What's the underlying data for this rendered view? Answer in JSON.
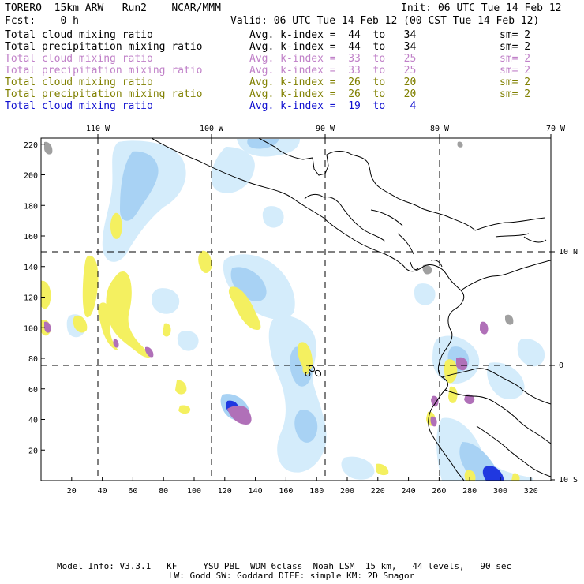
{
  "header": {
    "model": "TORERO  15km ARW   Run2    NCAR/MMM",
    "init": "Init: 06 UTC Tue 14 Feb 12",
    "fcst": "Fcst:    0 h",
    "valid": "Valid: 06 UTC Tue 14 Feb 12 (00 CST Tue 14 Feb 12)"
  },
  "legend": [
    {
      "field": "Total cloud mixing ratio",
      "kindex": "Avg. k-index =  44  to   34",
      "sm": "sm= 2",
      "color": "#000000"
    },
    {
      "field": "Total precipitation mixing ratio",
      "kindex": "Avg. k-index =  44  to   34",
      "sm": "sm= 2",
      "color": "#000000"
    },
    {
      "field": "Total cloud mixing ratio",
      "kindex": "Avg. k-index =  33  to   25",
      "sm": "sm= 2",
      "color": "#c080c8"
    },
    {
      "field": "Total precipitation mixing ratio",
      "kindex": "Avg. k-index =  33  to   25",
      "sm": "sm= 2",
      "color": "#c080c8"
    },
    {
      "field": "Total cloud mixing ratio",
      "kindex": "Avg. k-index =  26  to   20",
      "sm": "sm= 2",
      "color": "#808000"
    },
    {
      "field": "Total precipitation mixing ratio",
      "kindex": "Avg. k-index =  26  to   20",
      "sm": "sm= 2",
      "color": "#808000"
    },
    {
      "field": "Total cloud mixing ratio",
      "kindex": "Avg. k-index =  19  to    4",
      "sm": "",
      "color": "#1010d0"
    }
  ],
  "lon_labels": [
    "110 W",
    "100 W",
    "90 W",
    "80 W",
    "70 W"
  ],
  "lat_labels": [
    "10 N",
    "0",
    "10 S"
  ],
  "x_ticks": [
    "20",
    "40",
    "60",
    "80",
    "100",
    "120",
    "140",
    "160",
    "180",
    "200",
    "220",
    "240",
    "260",
    "280",
    "300",
    "320"
  ],
  "y_ticks": [
    "20",
    "40",
    "60",
    "80",
    "100",
    "120",
    "140",
    "160",
    "180",
    "200",
    "220"
  ],
  "footer": {
    "line1": "Model Info: V3.3.1   KF     YSU PBL  WDM 6class  Noah LSM  15 km,   44 levels,   90 sec",
    "line2": "LW: Godd SW: Goddard DIFF: simple KM: 2D Smagor"
  },
  "colors": {
    "cloud_light": "#d4ecfb",
    "cloud_mid": "#a8d2f4",
    "cloud_dark": "#2038e0",
    "yellow": "#f4f060",
    "purple": "#b070b8",
    "gray": "#a0a0a0"
  }
}
